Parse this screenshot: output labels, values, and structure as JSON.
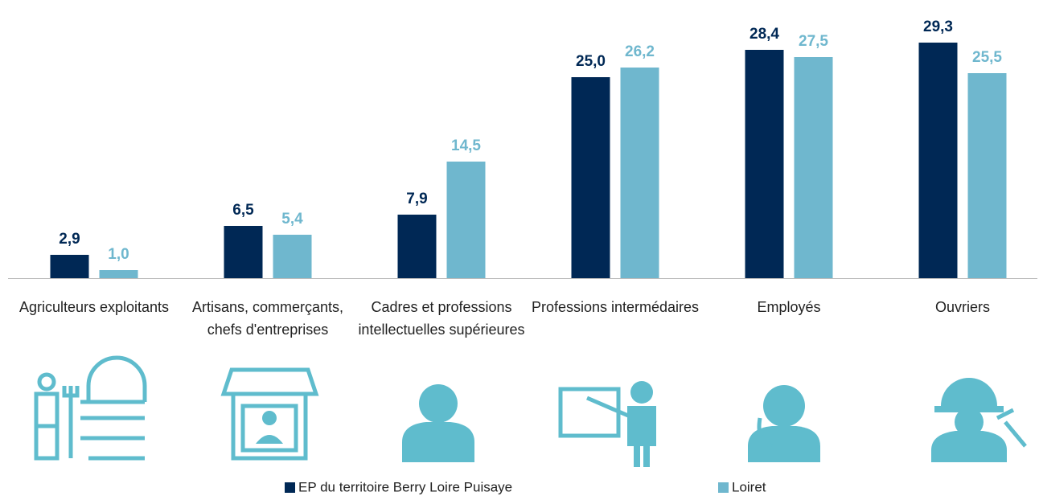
{
  "chart_data": {
    "type": "bar",
    "categories": [
      "Agriculteurs exploitants",
      "Artisans, commerçants, chefs d'entreprises",
      "Cadres et professions intellectuelles supérieures",
      "Professions intermédaires",
      "Employés",
      "Ouvriers"
    ],
    "series": [
      {
        "name": "EP du territoire Berry Loire Puisaye",
        "color": "#002855",
        "values": [
          2.9,
          6.5,
          7.9,
          25.0,
          28.4,
          29.3
        ],
        "value_labels": [
          "2,9",
          "6,5",
          "7,9",
          "25,0",
          "28,4",
          "29,3"
        ]
      },
      {
        "name": "Loiret",
        "color": "#6fb7ce",
        "values": [
          1.0,
          5.4,
          14.5,
          26.2,
          27.5,
          25.5
        ],
        "value_labels": [
          "1,0",
          "5,4",
          "14,5",
          "26,2",
          "27,5",
          "25,5"
        ]
      }
    ]
  }
}
